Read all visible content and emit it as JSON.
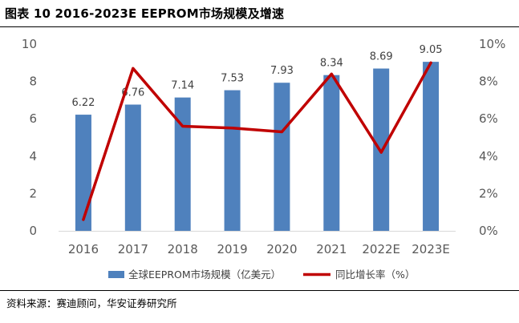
{
  "figure": {
    "title": "图表 10 2016-2023E EEPROM市场规模及增速",
    "source": "资料来源：赛迪顾问，华安证券研究所"
  },
  "chart_data": {
    "type": "bar",
    "categories": [
      "2016",
      "2017",
      "2018",
      "2019",
      "2020",
      "2021",
      "2022E",
      "2023E"
    ],
    "series": [
      {
        "name": "全球EEPROM市场规模（亿美元）",
        "type": "bar",
        "axis": "left",
        "color": "#4F81BD",
        "values": [
          6.22,
          6.76,
          7.14,
          7.53,
          7.93,
          8.34,
          8.69,
          9.05
        ],
        "labels": [
          "6.22",
          "6.76",
          "7.14",
          "7.53",
          "7.93",
          "8.34",
          "8.69",
          "9.05"
        ]
      },
      {
        "name": "同比增长率（%）",
        "type": "line",
        "axis": "right",
        "color": "#C00000",
        "values": [
          0.6,
          8.7,
          5.6,
          5.5,
          5.3,
          8.4,
          4.2,
          9.0
        ]
      }
    ],
    "y_left": {
      "ylim": [
        0,
        10
      ],
      "ticks": [
        "0",
        "2",
        "4",
        "6",
        "8",
        "10"
      ]
    },
    "y_right": {
      "ylim": [
        0,
        10
      ],
      "ticks": [
        "0%",
        "2%",
        "4%",
        "6%",
        "8%",
        "10%"
      ]
    },
    "grid": false,
    "legend": "bottom"
  }
}
